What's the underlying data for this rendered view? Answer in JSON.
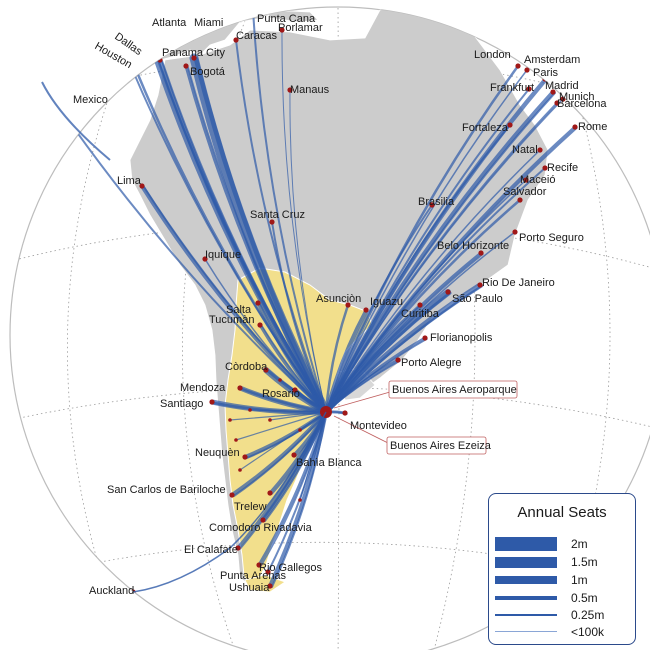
{
  "map": {
    "hubs": [
      {
        "name": "Buenos Aires Aeroparque"
      },
      {
        "name": "Buenos Aires Ezeiza"
      }
    ],
    "cities": [
      "Atlanta",
      "Miami",
      "Punta Cana",
      "Caracas",
      "Porlamar",
      "Dallas",
      "Houston",
      "Panama City",
      "Bogotá",
      "Mexico",
      "Manaus",
      "London",
      "Amsterdam",
      "Paris",
      "Frankfurt",
      "Madrid",
      "Munich",
      "Barcelona",
      "Rome",
      "Fortaleza",
      "Natal",
      "Recife",
      "Maceió",
      "Salvador",
      "Lima",
      "Santa Cruz",
      "Brasilia",
      "Porto Seguro",
      "Belo Horizonte",
      "Iquique",
      "Rio De Janeiro",
      "São Paulo",
      "Asunciòn",
      "Iguazu",
      "Curitiba",
      "Salta",
      "Tucumàn",
      "Florianopolis",
      "Porto Alegre",
      "Còrdoba",
      "Mendoza",
      "Rosario",
      "Santiago",
      "Montevideo",
      "Neuquèn",
      "Bahìa Blanca",
      "San Carlos de Bariloche",
      "Trelew",
      "Comodoro Rivadavia",
      "El Calafate",
      "Rio Gallegos",
      "Punta Arenas",
      "Ushuaia",
      "Auckland"
    ],
    "colors": {
      "route": "#2e5aa8",
      "argentina": "#f2df8c",
      "land": "#cccccc",
      "city_dot": "#a01818",
      "globe_grid": "#9a9a9a"
    }
  },
  "legend": {
    "title": "Annual Seats",
    "items": [
      {
        "label": "2m",
        "seats": 2000000
      },
      {
        "label": "1.5m",
        "seats": 1500000
      },
      {
        "label": "1m",
        "seats": 1000000
      },
      {
        "label": "0.5m",
        "seats": 500000
      },
      {
        "label": "0.25m",
        "seats": 250000
      },
      {
        "label": "<100k",
        "seats": 100000
      }
    ]
  }
}
